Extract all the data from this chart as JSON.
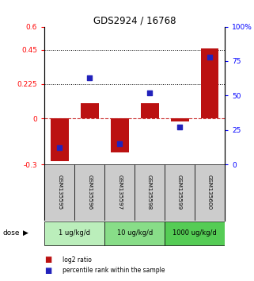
{
  "title": "GDS2924 / 16768",
  "samples": [
    "GSM135595",
    "GSM135596",
    "GSM135597",
    "GSM135598",
    "GSM135599",
    "GSM135600"
  ],
  "log2_ratios": [
    -0.28,
    0.1,
    -0.22,
    0.1,
    -0.02,
    0.46
  ],
  "percentile_ranks": [
    12,
    63,
    15,
    52,
    27,
    78
  ],
  "doses": [
    {
      "label": "1 ug/kg/d",
      "samples": [
        0,
        1
      ],
      "color": "#bbeebb"
    },
    {
      "label": "10 ug/kg/d",
      "samples": [
        2,
        3
      ],
      "color": "#88dd88"
    },
    {
      "label": "1000 ug/kg/d",
      "samples": [
        4,
        5
      ],
      "color": "#55cc55"
    }
  ],
  "bar_color": "#bb1111",
  "dot_color": "#2222bb",
  "zero_line_color": "#cc3333",
  "left_ylim": [
    -0.3,
    0.6
  ],
  "right_ylim": [
    0,
    100
  ],
  "left_yticks": [
    -0.3,
    0,
    0.225,
    0.45,
    0.6
  ],
  "left_yticklabels": [
    "-0.3",
    "0",
    "0.225",
    "0.45",
    "0.6"
  ],
  "right_yticks": [
    0,
    25,
    50,
    75,
    100
  ],
  "right_yticklabels": [
    "0",
    "25",
    "50",
    "75",
    "100%"
  ],
  "hlines": [
    0.225,
    0.45
  ],
  "dose_label": "dose",
  "legend_bar_label": "log2 ratio",
  "legend_dot_label": "percentile rank within the sample",
  "sample_box_color": "#cccccc",
  "bar_width": 0.6
}
